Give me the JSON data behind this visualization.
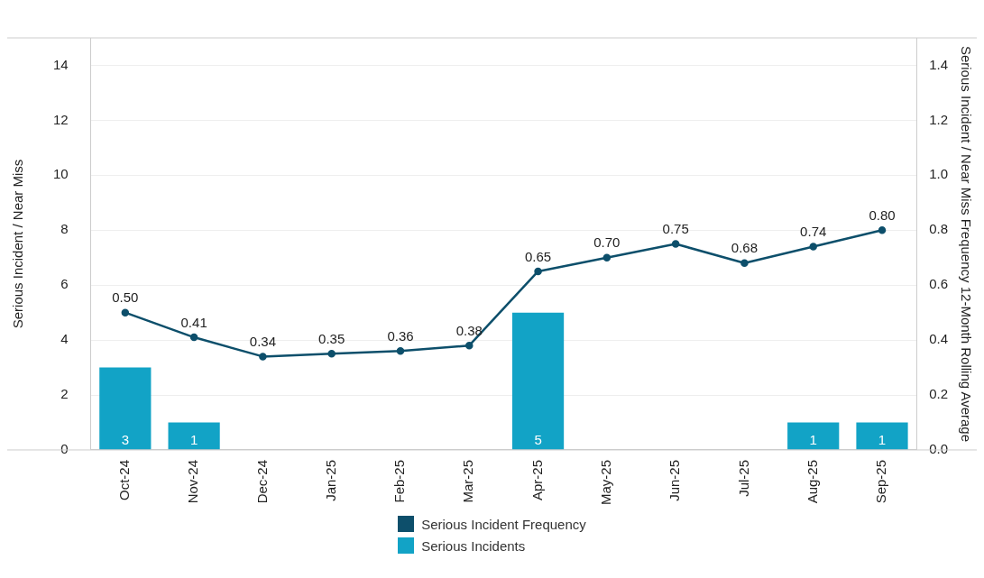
{
  "chart_data": {
    "type": "bar",
    "categories": [
      "Oct-24",
      "Nov-24",
      "Dec-24",
      "Jan-25",
      "Feb-25",
      "Mar-25",
      "Apr-25",
      "May-25",
      "Jun-25",
      "Jul-25",
      "Aug-25",
      "Sep-25"
    ],
    "ylabel": "Serious Incident / Near Miss",
    "y2label": "Serious Incident / Near Miss Frequency 12-Month Rolling Average",
    "series": [
      {
        "name": "Serious Incident Frequency",
        "type": "line",
        "axis": "y2",
        "color": "#0d4f6b",
        "values": [
          0.5,
          0.41,
          0.34,
          0.35,
          0.36,
          0.38,
          0.65,
          0.7,
          0.75,
          0.68,
          0.74,
          0.8
        ],
        "value_labels": [
          "0.50",
          "0.41",
          "0.34",
          "0.35",
          "0.36",
          "0.38",
          "0.65",
          "0.70",
          "0.75",
          "0.68",
          "0.74",
          "0.80"
        ]
      },
      {
        "name": "Serious Incidents",
        "color": "#12a3c6",
        "values": [
          3,
          1,
          0,
          0,
          0,
          0,
          5,
          0,
          0,
          0,
          1,
          1
        ],
        "value_labels": [
          "3",
          "1",
          null,
          null,
          null,
          null,
          "5",
          null,
          null,
          null,
          "1",
          "1"
        ]
      }
    ],
    "ylim": [
      0,
      15
    ],
    "yticks": [
      0,
      2,
      4,
      6,
      8,
      10,
      12,
      14
    ],
    "y2lim": [
      0,
      1.5
    ],
    "y2ticks": [
      {
        "value": 0,
        "label": "0.0"
      },
      {
        "value": 0.2,
        "label": "0.2"
      },
      {
        "value": 0.4,
        "label": "0.4"
      },
      {
        "value": 0.6,
        "label": "0.6"
      },
      {
        "value": 0.8,
        "label": "0.8"
      },
      {
        "value": 1,
        "label": "1.0"
      },
      {
        "value": 1.2,
        "label": "1.2"
      },
      {
        "value": 1.4,
        "label": "1.4"
      }
    ],
    "grid": "y",
    "legend": "bottom",
    "marker": "circle"
  }
}
